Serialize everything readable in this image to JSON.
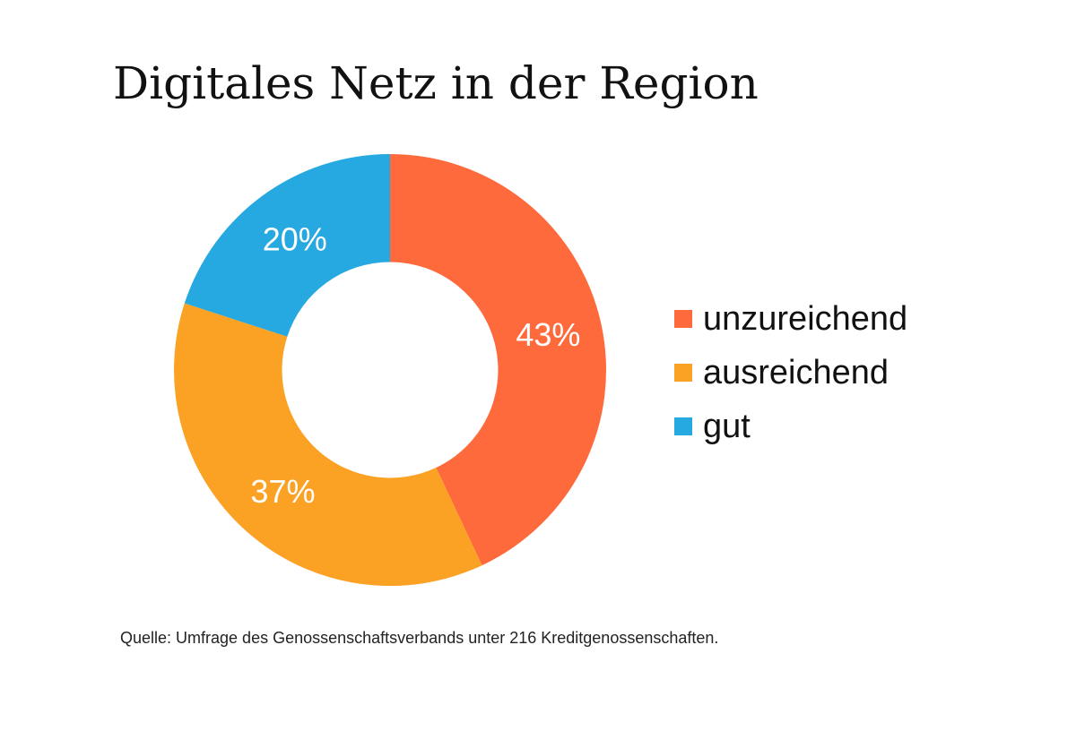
{
  "chart_data": {
    "type": "pie",
    "title": "Digitales Netz in der Region",
    "categories": [
      "unzureichend",
      "ausreichend",
      "gut"
    ],
    "values": [
      43,
      37,
      20
    ],
    "value_labels": [
      "43%",
      "37%",
      "20%"
    ],
    "colors": [
      "#FF6A3C",
      "#FBA124",
      "#26A8E0"
    ],
    "start_angle_deg": 0,
    "direction": "clockwise",
    "inner_radius_ratio": 0.5,
    "legend_position": "right",
    "source": "Quelle: Umfrage des Genossenschaftsverbands unter 216 Kreditgenossenschaften."
  }
}
